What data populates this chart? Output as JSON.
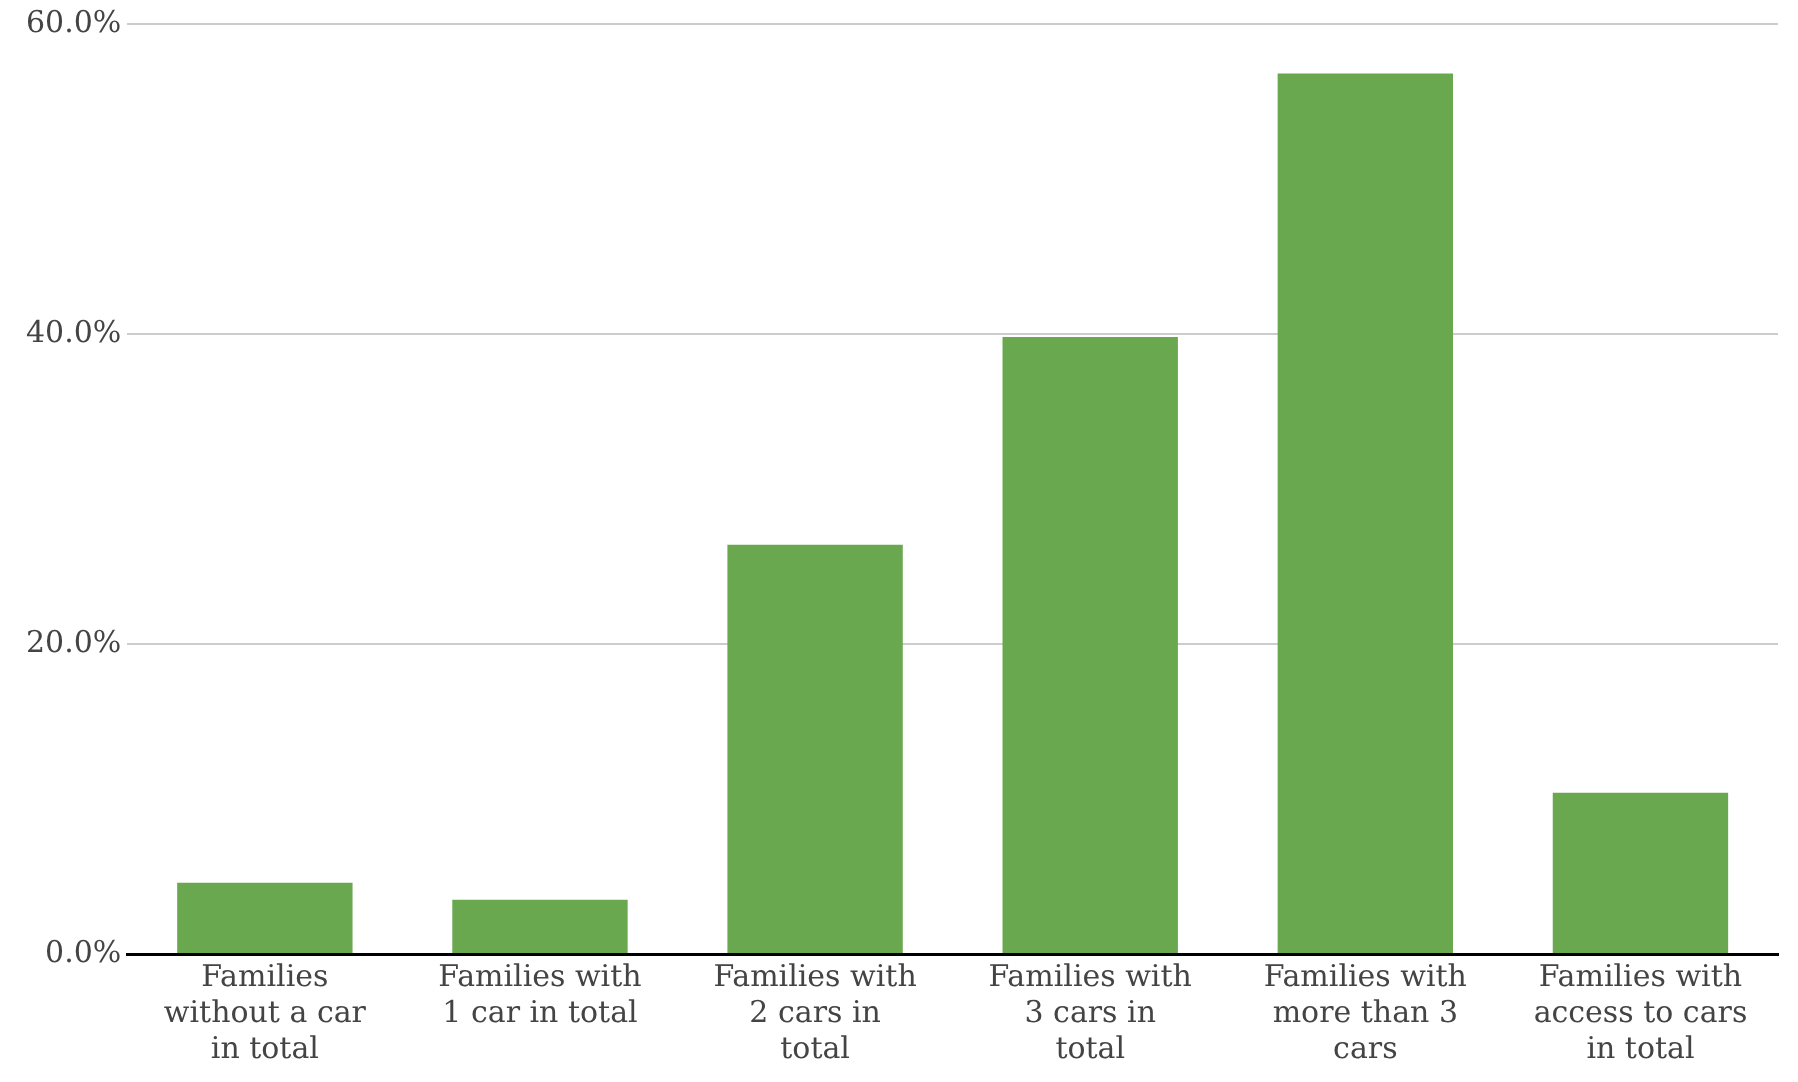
{
  "chart_data": {
    "type": "bar",
    "categories": [
      "Families without a car in total",
      "Families with 1 car in total",
      "Families with 2 cars in total",
      "Families with 3 cars in total",
      "Families with more than 3 cars",
      "Families with access to cars in total"
    ],
    "values": [
      4.6,
      3.5,
      26.4,
      39.8,
      56.8,
      10.4
    ],
    "color": "#6aa84f",
    "ylim": [
      0,
      60
    ],
    "yticks": [
      {
        "value": 0,
        "label": "0.0%"
      },
      {
        "value": 20,
        "label": "20.0%"
      },
      {
        "value": 40,
        "label": "40.0%"
      },
      {
        "value": 60,
        "label": "60.0%"
      }
    ],
    "grid": "y",
    "legend": false
  }
}
